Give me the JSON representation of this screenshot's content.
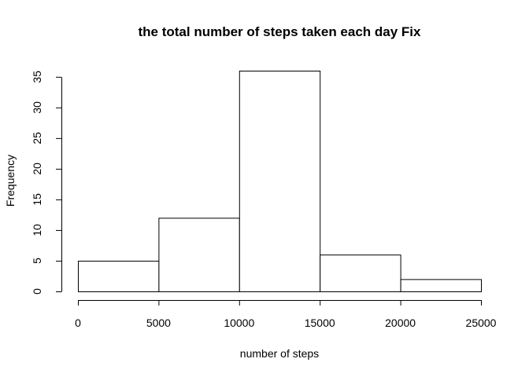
{
  "chart_data": {
    "type": "bar",
    "title": "the total number of steps taken each day Fix",
    "xlabel": "number of steps",
    "ylabel": "Frequency",
    "bins": [
      {
        "from": 0,
        "to": 5000,
        "count": 5
      },
      {
        "from": 5000,
        "to": 10000,
        "count": 12
      },
      {
        "from": 10000,
        "to": 15000,
        "count": 36
      },
      {
        "from": 15000,
        "to": 20000,
        "count": 6
      },
      {
        "from": 20000,
        "to": 25000,
        "count": 2
      }
    ],
    "xlim": [
      0,
      25000
    ],
    "ylim": [
      0,
      36
    ],
    "x_ticks": [
      0,
      5000,
      10000,
      15000,
      20000,
      25000
    ],
    "x_tick_labels": [
      "0",
      "5000",
      "10000",
      "15000",
      "20000",
      "25000"
    ],
    "y_ticks": [
      0,
      5,
      10,
      15,
      20,
      25,
      30,
      35
    ],
    "y_tick_labels": [
      "0",
      "5",
      "10",
      "15",
      "20",
      "25",
      "30",
      "35"
    ],
    "grid": false,
    "legend": "none",
    "colors": {
      "bar_fill": "#ffffff",
      "bar_stroke": "#000000"
    }
  }
}
